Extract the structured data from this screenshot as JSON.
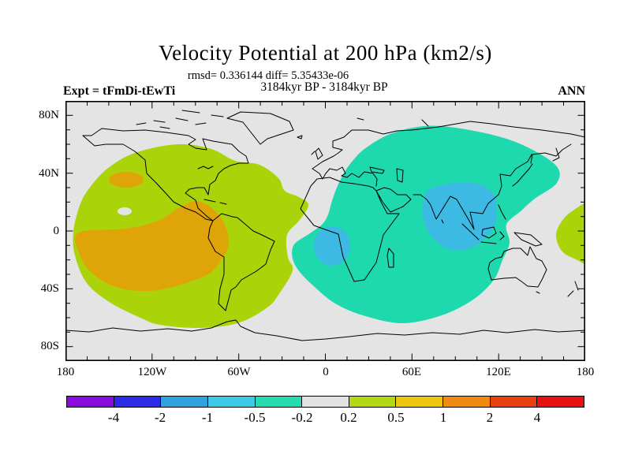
{
  "title": "Velocity Potential at 200 hPa (km2/s)",
  "annotations": {
    "stats": "rmsd= 0.336144 diff= 5.35433e-06",
    "period": "3184kyr BP - 3184kyr BP",
    "experiment": "Expt = tFmDi-tEwTi",
    "season": "ANN"
  },
  "axes": {
    "lat_labels": [
      "80N",
      "40N",
      "0",
      "40S",
      "80S"
    ],
    "lon_labels": [
      "180",
      "120W",
      "60W",
      "0",
      "60E",
      "120E",
      "180"
    ]
  },
  "colorbar": {
    "boundary_labels": [
      "-4",
      "-2",
      "-1",
      "-0.5",
      "-0.2",
      "0.2",
      "0.5",
      "1",
      "2",
      "4"
    ],
    "segment_colors": [
      "#8A0BDE",
      "#2B2BE8",
      "#2FA3E0",
      "#3DC9E8",
      "#25DBB0",
      "#E2E2E2",
      "#B2D816",
      "#EEC711",
      "#F08A12",
      "#E8400E",
      "#E81010"
    ]
  },
  "map_colors": {
    "background": "#E4E4E4",
    "positive_weak": "#ABD30A",
    "positive_strong": "#DFA408",
    "negative_weak": "#1FD9AE",
    "negative_strong": "#3CBAE4",
    "coastline": "#000000"
  },
  "chart_data": {
    "type": "heatmap",
    "subtype": "filled-contour world map, equirectangular projection",
    "title": "Velocity Potential at 200 hPa (km2/s)",
    "units": "km2/s",
    "season": "ANN",
    "experiment": "tFmDi-tEwTi",
    "period": "3184kyr BP - 3184kyr BP",
    "rmsd": 0.336144,
    "diff": 5.35433e-06,
    "contour_levels": [
      -4,
      -2,
      -1,
      -0.5,
      -0.2,
      0.2,
      0.5,
      1,
      2,
      4
    ],
    "lon_range": [
      -180,
      180
    ],
    "lat_range": [
      -90,
      90
    ],
    "lat_tick_interval_deg": 10,
    "lon_tick_interval_deg": 15,
    "background_band": "-0.2 to 0.2 (gray)",
    "features": [
      {
        "region": "eastern Pacific and the Americas",
        "band": "0.2 to 0.5",
        "lon_center": -110,
        "lat_center": -5,
        "extent": "55N to 60S, 170W to 10W"
      },
      {
        "region": "eastern tropical Pacific / northwestern South America",
        "band": "0.5 to 1",
        "lon_center": -110,
        "lat_center": -15
      },
      {
        "region": "northeast Pacific (~34N, 143W)",
        "band": "0.5 to 1",
        "lon_center": -143,
        "lat_center": 34
      },
      {
        "region": "Africa-Eurasia-Indian Ocean-Australia",
        "band": "-0.5 to -0.2",
        "lon_center": 70,
        "lat_center": 5,
        "extent": "65N to 55S, 15E(W edge near 0) to 170E"
      },
      {
        "region": "South / Southeast Asia and Bay of Bengal",
        "band": "-1 to -0.5",
        "lon_center": 100,
        "lat_center": 12
      },
      {
        "region": "Gulf of Guinea / Angola coast",
        "band": "-1 to -0.5",
        "lon_center": 5,
        "lat_center": -10
      },
      {
        "region": "western Pacific at the date line, equatorial",
        "band": "0.2 to 0.5",
        "lon_center": 175,
        "lat_center": 0
      }
    ]
  }
}
